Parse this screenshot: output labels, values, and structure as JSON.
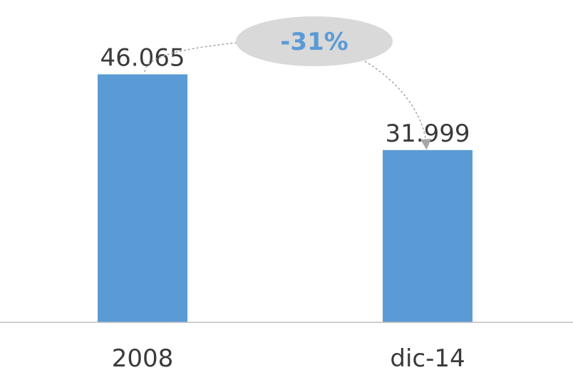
{
  "chart_data": {
    "type": "bar",
    "categories": [
      "2008",
      "dic-14"
    ],
    "values": [
      46065,
      31999
    ],
    "data_labels": [
      "46.065",
      "31.999"
    ],
    "ylim": [
      0,
      60000
    ],
    "grid": false,
    "legend": "none",
    "annotation": {
      "text": "-31%",
      "from_category": "2008",
      "to_category": "dic-14"
    },
    "colors": {
      "bar": "#5b9bd5",
      "annotation_bubble": "#d9d9d9",
      "annotation_text": "#5b9bd5",
      "connector": "#a6a6a6",
      "axis": "#bfbfbf"
    }
  }
}
